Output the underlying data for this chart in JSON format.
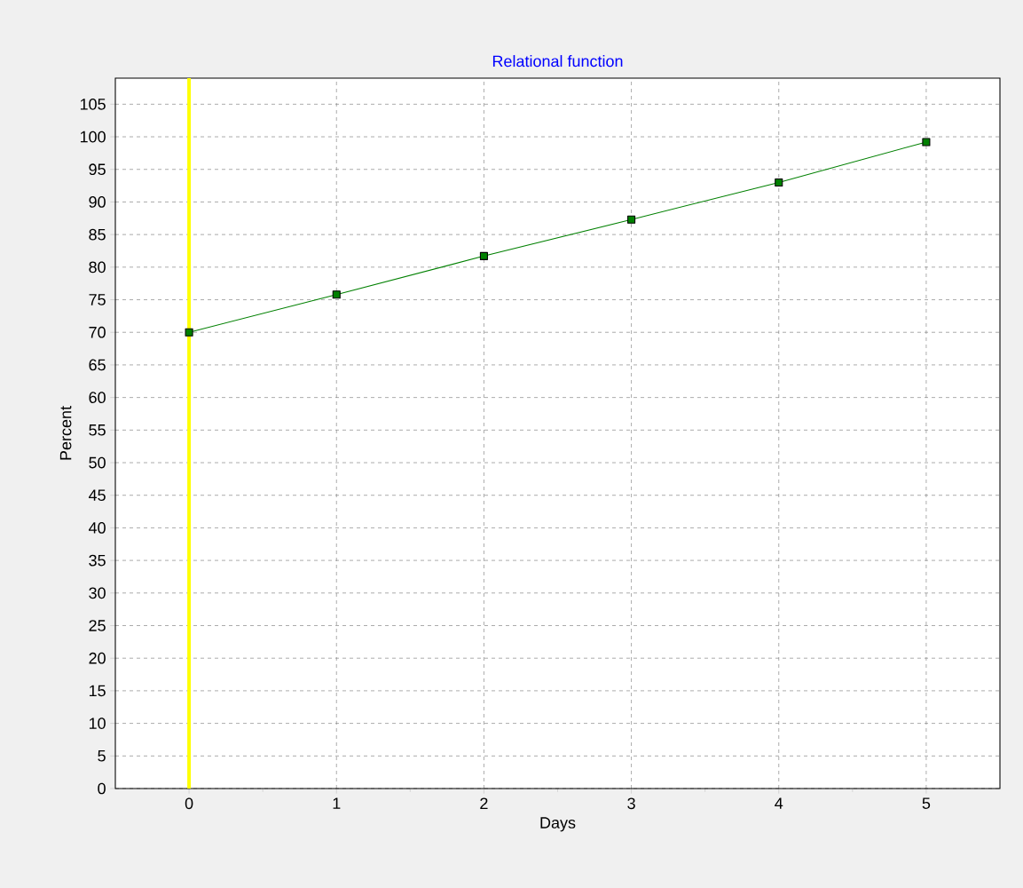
{
  "chart_data": {
    "type": "line",
    "title": "Relational function",
    "xlabel": "Days",
    "ylabel": "Percent",
    "x": [
      0,
      1,
      2,
      3,
      4,
      5
    ],
    "series": [
      {
        "color": "#008000",
        "values": [
          70,
          75.8,
          81.7,
          87.3,
          93,
          99.2
        ]
      }
    ],
    "xlim": [
      -0.5,
      5.5
    ],
    "ylim": [
      0,
      109
    ],
    "xticks": [
      0,
      1,
      2,
      3,
      4,
      5
    ],
    "yticks": [
      0,
      5,
      10,
      15,
      20,
      25,
      30,
      35,
      40,
      45,
      50,
      55,
      60,
      65,
      70,
      75,
      80,
      85,
      90,
      95,
      100,
      105
    ],
    "ref_lines": [
      {
        "axis": "x",
        "value": 0,
        "color": "#ffff00"
      }
    ],
    "grid": true,
    "marker": "square",
    "line_style": "solid"
  }
}
